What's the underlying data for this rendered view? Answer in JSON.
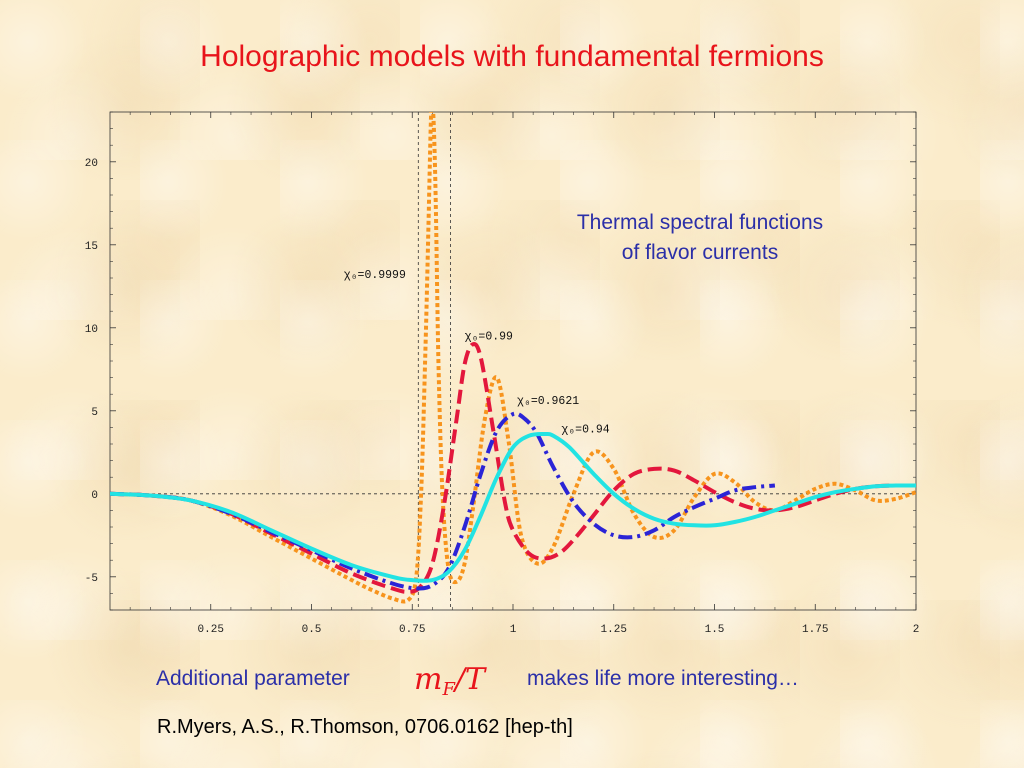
{
  "slide": {
    "title": "Holographic models with fundamental fermions",
    "note_line1": "Thermal spectral functions",
    "note_line2": "of flavor currents",
    "bottom_left": "Additional parameter",
    "math_base": "m",
    "math_sub": "F",
    "math_rest": "/T",
    "bottom_right": "makes life more interesting…",
    "citation": "R.Myers, A.S., R.Thomson, 0706.0162 [hep-th]"
  },
  "chart_data": {
    "type": "line",
    "title": "",
    "xlabel": "",
    "ylabel": "",
    "xlim": [
      0,
      2
    ],
    "ylim": [
      -7,
      23
    ],
    "x_ticks": [
      {
        "value": 0.25,
        "label": "0.25"
      },
      {
        "value": 0.5,
        "label": "0.5"
      },
      {
        "value": 0.75,
        "label": "0.75"
      },
      {
        "value": 1,
        "label": "1"
      },
      {
        "value": 1.25,
        "label": "1.25"
      },
      {
        "value": 1.5,
        "label": "1.5"
      },
      {
        "value": 1.75,
        "label": "1.75"
      },
      {
        "value": 2,
        "label": "2"
      }
    ],
    "y_ticks": [
      {
        "value": -5,
        "label": "-5"
      },
      {
        "value": 0,
        "label": "0"
      },
      {
        "value": 5,
        "label": "5"
      },
      {
        "value": 10,
        "label": "10"
      },
      {
        "value": 15,
        "label": "15"
      },
      {
        "value": 20,
        "label": "20"
      }
    ],
    "reference_lines": {
      "horizontal_y": 0,
      "vertical_x": [
        0.765,
        0.845
      ]
    },
    "series": [
      {
        "name": "χ₀=0.9999",
        "color": "#f7941d",
        "style": "dotted",
        "label": {
          "text": "χ₀=0.9999",
          "x": 0.58,
          "y": 13
        },
        "x": [
          0,
          0.1,
          0.2,
          0.3,
          0.4,
          0.5,
          0.6,
          0.65,
          0.7,
          0.74,
          0.76,
          0.772,
          0.782,
          0.79,
          0.797,
          0.802,
          0.808,
          0.815,
          0.825,
          0.84,
          0.86,
          0.88,
          0.9,
          0.93,
          0.96,
          0.99,
          1.02,
          1.06,
          1.1,
          1.15,
          1.2,
          1.25,
          1.3,
          1.35,
          1.4,
          1.45,
          1.5,
          1.55,
          1.6,
          1.65,
          1.7,
          1.75,
          1.8,
          1.85,
          1.9,
          1.95,
          2.0
        ],
        "values": [
          0,
          -0.1,
          -0.4,
          -1.3,
          -2.6,
          -3.9,
          -5.2,
          -5.8,
          -6.3,
          -6.4,
          -5.0,
          0,
          8,
          16,
          23,
          23,
          18,
          8,
          0,
          -4.5,
          -5.3,
          -4.2,
          -1,
          4.5,
          7,
          3,
          -2.5,
          -4.2,
          -3.2,
          0,
          2.5,
          1.5,
          -1.2,
          -2.6,
          -2.2,
          -0.2,
          1.2,
          0.7,
          -0.5,
          -1.0,
          -0.4,
          0.3,
          0.6,
          0.2,
          -0.4,
          -0.3,
          0.1
        ]
      },
      {
        "name": "χ₀=0.99",
        "color": "#e3173d",
        "style": "dashed",
        "label": {
          "text": "χ₀=0.99",
          "x": 0.88,
          "y": 9.3
        },
        "x": [
          0,
          0.1,
          0.2,
          0.3,
          0.4,
          0.5,
          0.6,
          0.7,
          0.74,
          0.77,
          0.8,
          0.83,
          0.86,
          0.88,
          0.9,
          0.92,
          0.95,
          0.98,
          1.0,
          1.04,
          1.08,
          1.12,
          1.16,
          1.2,
          1.25,
          1.3,
          1.35,
          1.4,
          1.45,
          1.5,
          1.55,
          1.6,
          1.65,
          1.7,
          1.75,
          1.8,
          1.85,
          1.9,
          1.95,
          2.0
        ],
        "values": [
          0,
          -0.1,
          -0.4,
          -1.2,
          -2.4,
          -3.6,
          -4.8,
          -5.7,
          -5.9,
          -5.6,
          -4.2,
          -0.5,
          4.5,
          7.8,
          9.0,
          8.2,
          4.0,
          -0.5,
          -2.2,
          -3.6,
          -3.9,
          -3.5,
          -2.5,
          -1.3,
          0.2,
          1.2,
          1.5,
          1.4,
          0.8,
          0.1,
          -0.5,
          -0.9,
          -1.0,
          -0.8,
          -0.4,
          0.0,
          0.3,
          0.45,
          0.5,
          0.5
        ]
      },
      {
        "name": "χ₀=0.9621",
        "color": "#2b24d6",
        "style": "dashdot",
        "label": {
          "text": "χ₀=0.9621",
          "x": 1.01,
          "y": 5.4
        },
        "x": [
          0,
          0.1,
          0.2,
          0.3,
          0.4,
          0.5,
          0.6,
          0.7,
          0.76,
          0.8,
          0.84,
          0.88,
          0.92,
          0.96,
          1.0,
          1.03,
          1.06,
          1.1,
          1.15,
          1.2,
          1.25,
          1.3,
          1.35,
          1.4,
          1.45,
          1.5,
          1.55,
          1.6,
          1.65
        ],
        "values": [
          0,
          -0.1,
          -0.4,
          -1.2,
          -2.3,
          -3.4,
          -4.5,
          -5.4,
          -5.7,
          -5.5,
          -4.5,
          -2.0,
          1.2,
          3.8,
          4.8,
          4.5,
          3.6,
          1.6,
          -0.5,
          -1.8,
          -2.5,
          -2.6,
          -2.2,
          -1.4,
          -0.8,
          -0.3,
          0.2,
          0.4,
          0.5
        ]
      },
      {
        "name": "χ₀=0.94",
        "color": "#22e3e3",
        "style": "solid",
        "label": {
          "text": "χ₀=0.94",
          "x": 1.12,
          "y": 3.7
        },
        "x": [
          0,
          0.1,
          0.2,
          0.3,
          0.4,
          0.5,
          0.6,
          0.7,
          0.75,
          0.8,
          0.84,
          0.88,
          0.92,
          0.96,
          1.0,
          1.04,
          1.08,
          1.1,
          1.14,
          1.2,
          1.25,
          1.3,
          1.35,
          1.4,
          1.45,
          1.5,
          1.55,
          1.6,
          1.65,
          1.7,
          1.75,
          1.8,
          1.85,
          1.9,
          1.95,
          2.0
        ],
        "values": [
          0,
          -0.1,
          -0.4,
          -1.1,
          -2.2,
          -3.3,
          -4.3,
          -5.0,
          -5.2,
          -5.2,
          -4.7,
          -3.4,
          -1.3,
          1.0,
          2.8,
          3.5,
          3.6,
          3.5,
          2.8,
          1.2,
          0.0,
          -0.9,
          -1.5,
          -1.8,
          -1.9,
          -1.9,
          -1.7,
          -1.4,
          -1.0,
          -0.6,
          -0.2,
          0.1,
          0.3,
          0.45,
          0.5,
          0.5
        ]
      }
    ]
  }
}
